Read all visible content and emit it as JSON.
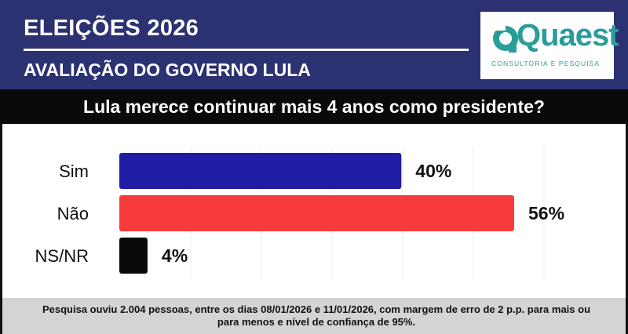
{
  "header": {
    "title": "ELEIÇÕES 2026",
    "subtitle": "AVALIAÇÃO DO GOVERNO LULA"
  },
  "logo": {
    "name": "Quaest",
    "tagline": "CONSULTORIA E PESQUISA",
    "color": "#2a9d9a"
  },
  "question": "Lula merece continuar mais 4 anos como presidente?",
  "chart_data": {
    "type": "bar",
    "orientation": "horizontal",
    "categories": [
      "Sim",
      "Não",
      "NS/NR"
    ],
    "values": [
      40,
      56,
      4
    ],
    "value_labels": [
      "40%",
      "56%",
      "4%"
    ],
    "colors": [
      "#1f1ca6",
      "#f73b3b",
      "#0a0a0a"
    ],
    "xlim": [
      0,
      56
    ],
    "grid": true
  },
  "footer": {
    "note": "Pesquisa ouviu 2.004 pessoas, entre os dias 08/01/2026 e 11/01/2026, com margem de erro de 2 p.p. para mais ou para menos e nível de confiança de 95%."
  }
}
